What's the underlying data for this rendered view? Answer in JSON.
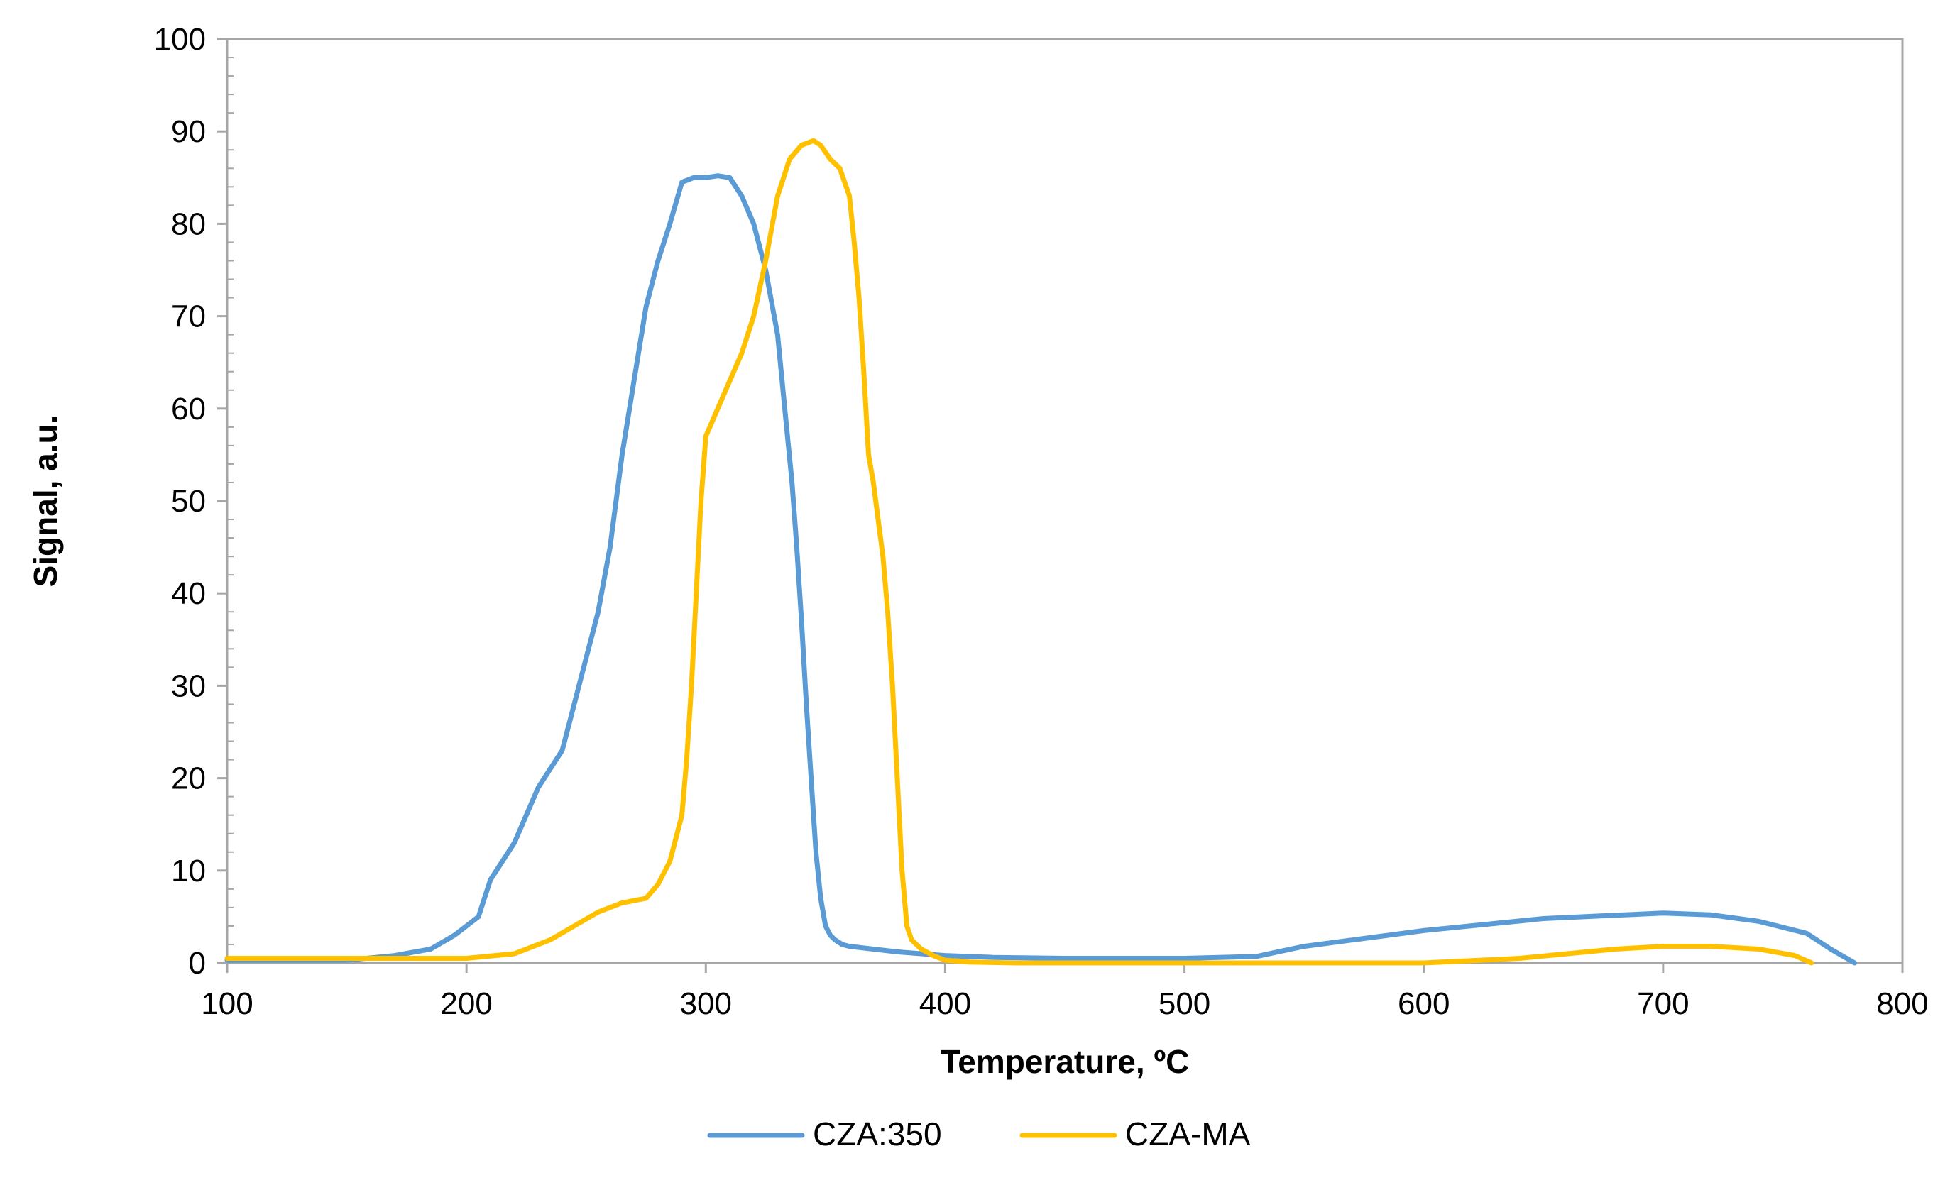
{
  "chart_data": {
    "type": "line",
    "title": "",
    "xlabel": "Temperature, ºC",
    "ylabel": "Signal, a.u.",
    "xlim": [
      100,
      800
    ],
    "ylim": [
      0,
      100
    ],
    "xticks": [
      100,
      200,
      300,
      400,
      500,
      600,
      700,
      800
    ],
    "yticks": [
      0,
      10,
      20,
      30,
      40,
      50,
      60,
      70,
      80,
      90,
      100
    ],
    "grid": false,
    "legend_position": "bottom",
    "series": [
      {
        "name": "CZA:350",
        "color": "#5B9BD5",
        "x": [
          100,
          150,
          170,
          185,
          195,
          205,
          210,
          220,
          230,
          240,
          245,
          250,
          255,
          260,
          265,
          270,
          275,
          280,
          285,
          290,
          295,
          300,
          305,
          310,
          315,
          320,
          325,
          330,
          333,
          336,
          338,
          340,
          342,
          344,
          346,
          348,
          350,
          352,
          354,
          357,
          360,
          370,
          380,
          400,
          420,
          450,
          500,
          530,
          550,
          600,
          650,
          700,
          720,
          740,
          760,
          770,
          780
        ],
        "y": [
          0.3,
          0.3,
          0.8,
          1.5,
          3,
          5,
          9,
          13,
          19,
          23,
          28,
          33,
          38,
          45,
          55,
          63,
          71,
          76,
          80,
          84.5,
          85,
          85,
          85.2,
          85,
          83,
          80,
          75,
          68,
          60,
          52,
          45,
          37,
          28,
          20,
          12,
          7,
          4,
          3,
          2.5,
          2,
          1.8,
          1.5,
          1.2,
          0.8,
          0.6,
          0.5,
          0.5,
          0.7,
          1.8,
          3.5,
          4.8,
          5.4,
          5.2,
          4.5,
          3.2,
          1.5,
          0
        ]
      },
      {
        "name": "CZA-MA",
        "color": "#FFC000",
        "x": [
          100,
          200,
          220,
          235,
          245,
          255,
          265,
          275,
          280,
          285,
          290,
          292,
          294,
          296,
          298,
          300,
          305,
          310,
          315,
          320,
          325,
          330,
          335,
          340,
          345,
          348,
          352,
          356,
          360,
          362,
          364,
          366,
          368,
          370,
          372,
          374,
          376,
          378,
          380,
          382,
          384,
          386,
          388,
          390,
          395,
          400,
          410,
          430,
          460,
          500,
          550,
          600,
          640,
          660,
          680,
          700,
          720,
          740,
          755,
          762
        ],
        "y": [
          0.5,
          0.5,
          1,
          2.5,
          4,
          5.5,
          6.5,
          7,
          8.5,
          11,
          16,
          22,
          30,
          40,
          50,
          57,
          60,
          63,
          66,
          70,
          76,
          83,
          87,
          88.5,
          89,
          88.5,
          87,
          86,
          83,
          78,
          72,
          64,
          55,
          52,
          48,
          44,
          38,
          30,
          20,
          10,
          4,
          2.5,
          2,
          1.5,
          0.8,
          0.3,
          0.1,
          0,
          0,
          0,
          0,
          0,
          0.5,
          1,
          1.5,
          1.8,
          1.8,
          1.5,
          0.8,
          0
        ]
      }
    ]
  }
}
